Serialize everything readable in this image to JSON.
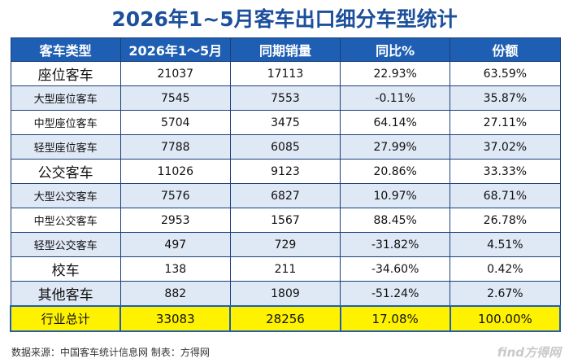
{
  "title": "2026年1~5月客车出口细分车型统计",
  "table": {
    "header": [
      "客车类型",
      "2026年1～5月",
      "同期销量",
      "同比%",
      "份额"
    ],
    "rows": [
      [
        "座位客车",
        "21037",
        "17113",
        "22.93%",
        "63.59%"
      ],
      [
        "大型座位客车",
        "7545",
        "7553",
        "-0.11%",
        "35.87%"
      ],
      [
        "中型座位客车",
        "5704",
        "3475",
        "64.14%",
        "27.11%"
      ],
      [
        "轻型座位客车",
        "7788",
        "6085",
        "27.99%",
        "37.02%"
      ],
      [
        "公交客车",
        "11026",
        "9123",
        "20.86%",
        "33.33%"
      ],
      [
        "大型公交客车",
        "7576",
        "6827",
        "10.97%",
        "68.71%"
      ],
      [
        "中型公交客车",
        "2953",
        "1567",
        "88.45%",
        "26.78%"
      ],
      [
        "轻型公交客车",
        "497",
        "729",
        "-31.82%",
        "4.51%"
      ],
      [
        "校车",
        "138",
        "211",
        "-34.60%",
        "0.42%"
      ],
      [
        "其他客车",
        "882",
        "1809",
        "-51.24%",
        "2.67%"
      ],
      [
        "行业总计",
        "33083",
        "28256",
        "17.08%",
        "100.00%"
      ]
    ]
  },
  "footer": {
    "source": "数据来源：中国客车统计信息网  制表：方得网",
    "watermark": "find方得网"
  }
}
